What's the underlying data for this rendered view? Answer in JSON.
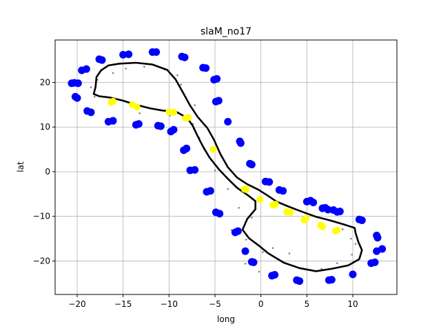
{
  "chart_data": {
    "type": "scatter",
    "title": "slaM_no17",
    "xlabel": "long",
    "ylabel": "lat",
    "xlim": [
      -22.4,
      14.8
    ],
    "ylim": [
      -27.5,
      29.5
    ],
    "xticks": [
      -20,
      -15,
      -10,
      -5,
      0,
      5,
      10
    ],
    "yticks": [
      -20,
      -10,
      0,
      10,
      20
    ],
    "grid": true,
    "colors": {
      "blue": "#0000ff",
      "yellow": "#ffff00",
      "gray": "#808080",
      "path": "#000000",
      "path_accent": "#008000"
    },
    "blue_points": [
      [
        -20.6,
        19.8
      ],
      [
        -20.3,
        19.9
      ],
      [
        -19.9,
        19.8
      ],
      [
        -20.2,
        16.8
      ],
      [
        -20.0,
        16.5
      ],
      [
        -19.5,
        22.7
      ],
      [
        -19.0,
        23.0
      ],
      [
        -18.9,
        13.6
      ],
      [
        -18.5,
        13.3
      ],
      [
        -17.6,
        25.2
      ],
      [
        -17.3,
        25.0
      ],
      [
        -16.6,
        11.2
      ],
      [
        -16.1,
        11.4
      ],
      [
        -15.0,
        26.2
      ],
      [
        -14.4,
        26.3
      ],
      [
        -13.6,
        10.5
      ],
      [
        -13.3,
        10.7
      ],
      [
        -11.8,
        26.8
      ],
      [
        -11.4,
        26.8
      ],
      [
        -11.2,
        10.3
      ],
      [
        -10.9,
        10.2
      ],
      [
        -9.8,
        9.0
      ],
      [
        -9.5,
        9.4
      ],
      [
        -8.6,
        25.8
      ],
      [
        -8.3,
        25.6
      ],
      [
        -8.4,
        4.8
      ],
      [
        -8.1,
        5.2
      ],
      [
        -7.7,
        0.3
      ],
      [
        -7.2,
        0.4
      ],
      [
        -6.3,
        23.3
      ],
      [
        -6.0,
        23.2
      ],
      [
        -5.9,
        -4.5
      ],
      [
        -5.5,
        -4.3
      ],
      [
        -5.1,
        20.6
      ],
      [
        -4.8,
        20.8
      ],
      [
        -4.9,
        15.7
      ],
      [
        -4.6,
        15.9
      ],
      [
        -4.9,
        -9.1
      ],
      [
        -4.5,
        -9.4
      ],
      [
        -3.6,
        11.2
      ],
      [
        -2.8,
        -13.6
      ],
      [
        -2.5,
        -13.3
      ],
      [
        -2.3,
        6.8
      ],
      [
        -2.2,
        6.4
      ],
      [
        -1.7,
        -17.8
      ],
      [
        -1.2,
        1.8
      ],
      [
        -1.0,
        1.6
      ],
      [
        -1.0,
        -20.2
      ],
      [
        -0.8,
        -20.3
      ],
      [
        0.5,
        -2.2
      ],
      [
        0.9,
        -2.3
      ],
      [
        1.2,
        -23.3
      ],
      [
        1.5,
        -23.1
      ],
      [
        2.0,
        -4.1
      ],
      [
        2.4,
        -4.3
      ],
      [
        3.9,
        -24.3
      ],
      [
        4.2,
        -24.5
      ],
      [
        5.0,
        -6.7
      ],
      [
        5.4,
        -6.5
      ],
      [
        5.7,
        -6.9
      ],
      [
        6.7,
        -8.2
      ],
      [
        7.0,
        -8.1
      ],
      [
        7.3,
        -8.5
      ],
      [
        7.4,
        -24.3
      ],
      [
        7.7,
        -24.2
      ],
      [
        7.9,
        -8.6
      ],
      [
        8.3,
        -9.0
      ],
      [
        8.6,
        -8.9
      ],
      [
        10.0,
        -23.0
      ],
      [
        10.7,
        -10.7
      ],
      [
        11.0,
        -10.9
      ],
      [
        12.0,
        -20.5
      ],
      [
        12.4,
        -20.3
      ],
      [
        12.6,
        -14.3
      ],
      [
        12.7,
        -14.8
      ],
      [
        12.6,
        -17.8
      ],
      [
        13.2,
        -17.3
      ]
    ],
    "yellow_points": [
      [
        -16.3,
        15.5
      ],
      [
        -16.1,
        15.8
      ],
      [
        -14.0,
        15.0
      ],
      [
        -13.5,
        14.5
      ],
      [
        -10.0,
        13.4
      ],
      [
        -9.5,
        13.3
      ],
      [
        -8.2,
        12.0
      ],
      [
        -7.9,
        12.1
      ],
      [
        -5.2,
        5.0
      ],
      [
        -1.8,
        -3.9
      ],
      [
        -1.6,
        -4.0
      ],
      [
        -0.1,
        -6.2
      ],
      [
        1.3,
        -7.5
      ],
      [
        1.6,
        -7.3
      ],
      [
        2.8,
        -9.0
      ],
      [
        3.2,
        -9.1
      ],
      [
        4.7,
        -10.8
      ],
      [
        4.9,
        -10.5
      ],
      [
        6.5,
        -12.0
      ],
      [
        6.7,
        -12.3
      ],
      [
        8.1,
        -13.3
      ],
      [
        8.3,
        -13.1
      ]
    ],
    "gray_points": [
      [
        -18.5,
        18.9
      ],
      [
        -18.1,
        16.8
      ],
      [
        -17.8,
        20.6
      ],
      [
        -16.1,
        22.1
      ],
      [
        -14.7,
        23.1
      ],
      [
        -13.2,
        13.1
      ],
      [
        -12.7,
        23.5
      ],
      [
        -10.5,
        22.9
      ],
      [
        -9.9,
        12.6
      ],
      [
        -9.1,
        21.6
      ],
      [
        -8.7,
        19.5
      ],
      [
        -7.2,
        14.9
      ],
      [
        -7.4,
        10.7
      ],
      [
        -7.3,
        9.6
      ],
      [
        -6.7,
        7.6
      ],
      [
        -6.2,
        5.1
      ],
      [
        -5.0,
        0.3
      ],
      [
        -3.6,
        -3.9
      ],
      [
        -2.4,
        -8.1
      ],
      [
        -1.0,
        -10.3
      ],
      [
        -3.2,
        -13.1
      ],
      [
        -1.6,
        -15.2
      ],
      [
        -2.0,
        -18.0
      ],
      [
        -1.7,
        -20.6
      ],
      [
        -0.2,
        -22.4
      ],
      [
        0.2,
        -18.0
      ],
      [
        1.3,
        -17.1
      ],
      [
        3.1,
        -18.3
      ],
      [
        5.5,
        -22.1
      ],
      [
        6.6,
        -21.8
      ],
      [
        8.3,
        -20.5
      ],
      [
        9.9,
        -18.6
      ],
      [
        10.3,
        -16.2
      ],
      [
        9.8,
        -15.0
      ],
      [
        8.9,
        -12.9
      ]
    ],
    "path": [
      [
        -18.0,
        19.0
      ],
      [
        -18.2,
        17.4
      ],
      [
        -17.6,
        16.9
      ],
      [
        -16.4,
        16.6
      ],
      [
        -15.0,
        15.9
      ],
      [
        -13.6,
        15.0
      ],
      [
        -12.1,
        14.2
      ],
      [
        -10.7,
        13.7
      ],
      [
        -9.2,
        13.4
      ],
      [
        -8.0,
        12.0
      ],
      [
        -7.4,
        10.2
      ],
      [
        -6.9,
        8.0
      ],
      [
        -6.3,
        5.6
      ],
      [
        -5.6,
        3.2
      ],
      [
        -4.6,
        0.6
      ],
      [
        -3.6,
        -1.6
      ],
      [
        -2.6,
        -3.6
      ],
      [
        -1.4,
        -5.3
      ],
      [
        -0.6,
        -6.6
      ],
      [
        -0.6,
        -8.4
      ],
      [
        -1.5,
        -10.6
      ],
      [
        -2.0,
        -13.0
      ],
      [
        -1.3,
        -14.9
      ],
      [
        -0.2,
        -16.6
      ],
      [
        0.8,
        -18.3
      ],
      [
        2.5,
        -20.4
      ],
      [
        4.2,
        -21.6
      ],
      [
        6.0,
        -22.3
      ],
      [
        7.8,
        -21.7
      ],
      [
        9.5,
        -21.0
      ],
      [
        10.7,
        -19.6
      ],
      [
        11.0,
        -17.6
      ],
      [
        10.6,
        -15.7
      ],
      [
        10.3,
        -13.7
      ],
      [
        10.2,
        -12.6
      ],
      [
        9.0,
        -11.8
      ],
      [
        7.5,
        -10.9
      ],
      [
        6.0,
        -10.1
      ],
      [
        4.5,
        -9.0
      ],
      [
        3.0,
        -7.8
      ],
      [
        1.7,
        -6.7
      ],
      [
        0.7,
        -5.3
      ],
      [
        -0.3,
        -4.0
      ],
      [
        -1.5,
        -2.8
      ],
      [
        -2.6,
        -1.3
      ],
      [
        -3.6,
        1.0
      ],
      [
        -4.4,
        3.9
      ],
      [
        -5.1,
        7.1
      ],
      [
        -5.8,
        9.7
      ],
      [
        -6.9,
        12.3
      ],
      [
        -7.7,
        14.8
      ],
      [
        -8.5,
        17.8
      ],
      [
        -9.3,
        20.7
      ],
      [
        -10.2,
        22.8
      ],
      [
        -11.8,
        24.0
      ],
      [
        -13.6,
        24.4
      ],
      [
        -15.4,
        24.2
      ],
      [
        -16.6,
        23.8
      ],
      [
        -17.4,
        22.7
      ],
      [
        -17.9,
        21.2
      ],
      [
        -18.0,
        19.0
      ]
    ]
  }
}
